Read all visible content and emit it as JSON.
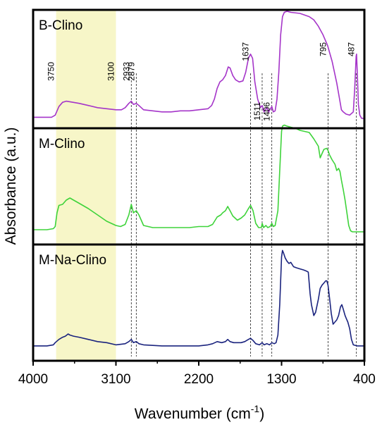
{
  "chart_data": {
    "type": "line",
    "xlabel": "Wavenumber (cm",
    "xlabel_sup": "-1",
    "xlabel_end": ")",
    "ylabel": "Absorbance (a.u.)",
    "xlim": [
      4000,
      400
    ],
    "x_reversed": true,
    "xticks": [
      4000,
      3100,
      2200,
      1300,
      400
    ],
    "highlight_region": {
      "from": 3750,
      "to": 3100,
      "color": "#f7f6c8"
    },
    "annotations": [
      {
        "x": 3750,
        "label": "3750",
        "line": false
      },
      {
        "x": 3100,
        "label": "3100",
        "line": false
      },
      {
        "x": 2933,
        "label": "2933",
        "line": true
      },
      {
        "x": 2879,
        "label": "2879",
        "line": true
      },
      {
        "x": 1637,
        "label": "1637",
        "line": true
      },
      {
        "x": 1511,
        "label": "1511",
        "line": true
      },
      {
        "x": 1406,
        "label": "1406",
        "line": true
      },
      {
        "x": 795,
        "label": "795",
        "line": true
      },
      {
        "x": 487,
        "label": "487",
        "line": true
      }
    ],
    "panels": [
      {
        "name": "B-Clino",
        "color": "#a535c9",
        "points": [
          [
            4000,
            0.03
          ],
          [
            3900,
            0.03
          ],
          [
            3800,
            0.03
          ],
          [
            3760,
            0.05
          ],
          [
            3720,
            0.13
          ],
          [
            3680,
            0.17
          ],
          [
            3640,
            0.18
          ],
          [
            3600,
            0.175
          ],
          [
            3500,
            0.16
          ],
          [
            3400,
            0.14
          ],
          [
            3300,
            0.12
          ],
          [
            3200,
            0.11
          ],
          [
            3100,
            0.1
          ],
          [
            3040,
            0.1
          ],
          [
            3000,
            0.12
          ],
          [
            2960,
            0.16
          ],
          [
            2933,
            0.18
          ],
          [
            2910,
            0.15
          ],
          [
            2879,
            0.16
          ],
          [
            2850,
            0.14
          ],
          [
            2800,
            0.1
          ],
          [
            2700,
            0.09
          ],
          [
            2600,
            0.08
          ],
          [
            2500,
            0.08
          ],
          [
            2400,
            0.09
          ],
          [
            2300,
            0.09
          ],
          [
            2200,
            0.1
          ],
          [
            2100,
            0.11
          ],
          [
            2060,
            0.14
          ],
          [
            2030,
            0.2
          ],
          [
            2000,
            0.3
          ],
          [
            1970,
            0.36
          ],
          [
            1940,
            0.38
          ],
          [
            1910,
            0.42
          ],
          [
            1880,
            0.5
          ],
          [
            1860,
            0.49
          ],
          [
            1830,
            0.42
          ],
          [
            1800,
            0.38
          ],
          [
            1760,
            0.36
          ],
          [
            1720,
            0.37
          ],
          [
            1690,
            0.45
          ],
          [
            1660,
            0.58
          ],
          [
            1637,
            0.62
          ],
          [
            1615,
            0.58
          ],
          [
            1590,
            0.36
          ],
          [
            1560,
            0.2
          ],
          [
            1530,
            0.12
          ],
          [
            1511,
            0.14
          ],
          [
            1490,
            0.08
          ],
          [
            1460,
            0.12
          ],
          [
            1440,
            0.08
          ],
          [
            1420,
            0.11
          ],
          [
            1406,
            0.13
          ],
          [
            1390,
            0.08
          ],
          [
            1370,
            0.09
          ],
          [
            1350,
            0.2
          ],
          [
            1330,
            0.45
          ],
          [
            1310,
            0.8
          ],
          [
            1290,
            0.97
          ],
          [
            1270,
            1.01
          ],
          [
            1240,
            1.02
          ],
          [
            1200,
            1.01
          ],
          [
            1100,
            1.0
          ],
          [
            1000,
            0.97
          ],
          [
            950,
            0.94
          ],
          [
            900,
            0.88
          ],
          [
            850,
            0.8
          ],
          [
            800,
            0.7
          ],
          [
            750,
            0.55
          ],
          [
            700,
            0.35
          ],
          [
            670,
            0.2
          ],
          [
            650,
            0.1
          ],
          [
            630,
            0.08
          ],
          [
            600,
            0.06
          ],
          [
            560,
            0.05
          ],
          [
            520,
            0.08
          ],
          [
            505,
            0.3
          ],
          [
            490,
            0.6
          ],
          [
            485,
            0.62
          ],
          [
            475,
            0.4
          ],
          [
            465,
            0.15
          ],
          [
            450,
            0.05
          ],
          [
            430,
            0.02
          ],
          [
            400,
            0.02
          ]
        ]
      },
      {
        "name": "M-Clino",
        "color": "#3ed33a",
        "points": [
          [
            4000,
            0.04
          ],
          [
            3850,
            0.04
          ],
          [
            3780,
            0.05
          ],
          [
            3760,
            0.07
          ],
          [
            3740,
            0.2
          ],
          [
            3720,
            0.27
          ],
          [
            3680,
            0.28
          ],
          [
            3640,
            0.32
          ],
          [
            3600,
            0.34
          ],
          [
            3560,
            0.32
          ],
          [
            3500,
            0.29
          ],
          [
            3400,
            0.24
          ],
          [
            3300,
            0.18
          ],
          [
            3200,
            0.12
          ],
          [
            3100,
            0.08
          ],
          [
            3050,
            0.07
          ],
          [
            3000,
            0.09
          ],
          [
            2960,
            0.18
          ],
          [
            2933,
            0.28
          ],
          [
            2910,
            0.2
          ],
          [
            2879,
            0.22
          ],
          [
            2850,
            0.18
          ],
          [
            2800,
            0.08
          ],
          [
            2700,
            0.06
          ],
          [
            2600,
            0.06
          ],
          [
            2500,
            0.06
          ],
          [
            2400,
            0.06
          ],
          [
            2300,
            0.06
          ],
          [
            2200,
            0.07
          ],
          [
            2100,
            0.07
          ],
          [
            2050,
            0.09
          ],
          [
            2000,
            0.16
          ],
          [
            1960,
            0.18
          ],
          [
            1940,
            0.2
          ],
          [
            1910,
            0.22
          ],
          [
            1885,
            0.26
          ],
          [
            1860,
            0.22
          ],
          [
            1830,
            0.17
          ],
          [
            1780,
            0.13
          ],
          [
            1740,
            0.15
          ],
          [
            1700,
            0.18
          ],
          [
            1660,
            0.24
          ],
          [
            1637,
            0.27
          ],
          [
            1610,
            0.22
          ],
          [
            1580,
            0.1
          ],
          [
            1550,
            0.06
          ],
          [
            1520,
            0.06
          ],
          [
            1511,
            0.1
          ],
          [
            1495,
            0.06
          ],
          [
            1470,
            0.08
          ],
          [
            1450,
            0.06
          ],
          [
            1425,
            0.07
          ],
          [
            1406,
            0.1
          ],
          [
            1390,
            0.07
          ],
          [
            1370,
            0.08
          ],
          [
            1340,
            0.22
          ],
          [
            1320,
            0.6
          ],
          [
            1300,
            0.97
          ],
          [
            1290,
            1.02
          ],
          [
            1270,
            1.03
          ],
          [
            1240,
            1.02
          ],
          [
            1200,
            1.01
          ],
          [
            1150,
            1.0
          ],
          [
            1100,
            0.98
          ],
          [
            1000,
            0.96
          ],
          [
            950,
            0.9
          ],
          [
            900,
            0.83
          ],
          [
            880,
            0.72
          ],
          [
            860,
            0.76
          ],
          [
            840,
            0.8
          ],
          [
            810,
            0.81
          ],
          [
            795,
            0.79
          ],
          [
            780,
            0.75
          ],
          [
            750,
            0.7
          ],
          [
            720,
            0.66
          ],
          [
            700,
            0.6
          ],
          [
            680,
            0.62
          ],
          [
            665,
            0.59
          ],
          [
            650,
            0.51
          ],
          [
            630,
            0.42
          ],
          [
            610,
            0.32
          ],
          [
            590,
            0.2
          ],
          [
            570,
            0.08
          ],
          [
            550,
            0.03
          ],
          [
            530,
            0.02
          ],
          [
            400,
            0.02
          ]
        ]
      },
      {
        "name": "M-Na-Clino",
        "color": "#1a237e",
        "points": [
          [
            4000,
            0.02
          ],
          [
            3850,
            0.02
          ],
          [
            3780,
            0.03
          ],
          [
            3760,
            0.05
          ],
          [
            3720,
            0.08
          ],
          [
            3680,
            0.1
          ],
          [
            3650,
            0.11
          ],
          [
            3620,
            0.13
          ],
          [
            3600,
            0.12
          ],
          [
            3560,
            0.11
          ],
          [
            3500,
            0.1
          ],
          [
            3400,
            0.08
          ],
          [
            3300,
            0.06
          ],
          [
            3200,
            0.05
          ],
          [
            3100,
            0.03
          ],
          [
            3000,
            0.04
          ],
          [
            2960,
            0.06
          ],
          [
            2933,
            0.08
          ],
          [
            2910,
            0.05
          ],
          [
            2879,
            0.06
          ],
          [
            2850,
            0.04
          ],
          [
            2800,
            0.03
          ],
          [
            2600,
            0.02
          ],
          [
            2400,
            0.02
          ],
          [
            2200,
            0.02
          ],
          [
            2100,
            0.03
          ],
          [
            2050,
            0.04
          ],
          [
            2000,
            0.06
          ],
          [
            1950,
            0.05
          ],
          [
            1910,
            0.06
          ],
          [
            1885,
            0.08
          ],
          [
            1860,
            0.06
          ],
          [
            1820,
            0.05
          ],
          [
            1780,
            0.05
          ],
          [
            1740,
            0.05
          ],
          [
            1700,
            0.06
          ],
          [
            1660,
            0.08
          ],
          [
            1637,
            0.09
          ],
          [
            1610,
            0.07
          ],
          [
            1580,
            0.04
          ],
          [
            1540,
            0.03
          ],
          [
            1511,
            0.05
          ],
          [
            1490,
            0.03
          ],
          [
            1460,
            0.04
          ],
          [
            1430,
            0.03
          ],
          [
            1406,
            0.05
          ],
          [
            1380,
            0.04
          ],
          [
            1360,
            0.05
          ],
          [
            1340,
            0.12
          ],
          [
            1320,
            0.4
          ],
          [
            1300,
            0.84
          ],
          [
            1290,
            0.9
          ],
          [
            1280,
            0.88
          ],
          [
            1260,
            0.83
          ],
          [
            1240,
            0.8
          ],
          [
            1220,
            0.78
          ],
          [
            1200,
            0.79
          ],
          [
            1170,
            0.75
          ],
          [
            1140,
            0.74
          ],
          [
            1100,
            0.73
          ],
          [
            1060,
            0.72
          ],
          [
            1030,
            0.71
          ],
          [
            1010,
            0.7
          ],
          [
            990,
            0.5
          ],
          [
            975,
            0.4
          ],
          [
            960,
            0.34
          ],
          [
            950,
            0.3
          ],
          [
            930,
            0.33
          ],
          [
            900,
            0.45
          ],
          [
            880,
            0.55
          ],
          [
            860,
            0.58
          ],
          [
            840,
            0.6
          ],
          [
            820,
            0.62
          ],
          [
            808,
            0.62
          ],
          [
            795,
            0.58
          ],
          [
            780,
            0.47
          ],
          [
            760,
            0.32
          ],
          [
            740,
            0.22
          ],
          [
            720,
            0.24
          ],
          [
            700,
            0.26
          ],
          [
            680,
            0.3
          ],
          [
            660,
            0.38
          ],
          [
            645,
            0.4
          ],
          [
            630,
            0.36
          ],
          [
            610,
            0.3
          ],
          [
            595,
            0.27
          ],
          [
            580,
            0.24
          ],
          [
            560,
            0.18
          ],
          [
            540,
            0.08
          ],
          [
            520,
            0.03
          ],
          [
            480,
            0.02
          ],
          [
            400,
            0.02
          ]
        ]
      }
    ]
  }
}
